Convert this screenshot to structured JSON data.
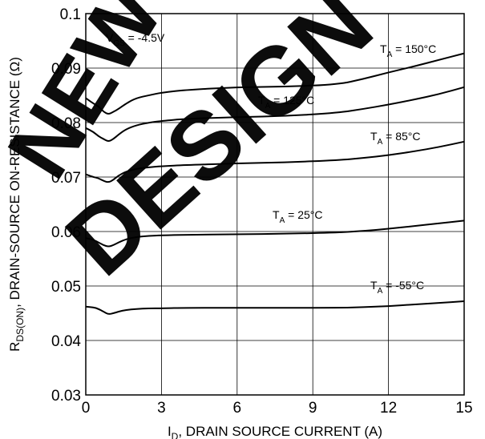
{
  "chart_data": {
    "type": "line",
    "xlabel_main": "I",
    "xlabel_sub": "D",
    "xlabel_rest": ", DRAIN SOURCE CURRENT (A)",
    "ylabel_main": "R",
    "ylabel_sub": "DS(ON)",
    "ylabel_rest": ", DRAIN-SOURCE ON-RESISTANCE (Ω)",
    "condition_main": "V",
    "condition_sub": "GS",
    "condition_rest": " = -4.5V",
    "xlim": [
      0,
      15
    ],
    "ylim": [
      0.03,
      0.1
    ],
    "x_ticks": [
      "0",
      "3",
      "6",
      "9",
      "12",
      "15"
    ],
    "y_ticks": [
      "0.1",
      "0.09",
      "0.08",
      "0.07",
      "0.06",
      "0.05",
      "0.04",
      "0.03"
    ],
    "grid": true,
    "series": [
      {
        "name_main": "T",
        "name_sub": "A",
        "name_rest": " = 150°C",
        "x": [
          0,
          0.3,
          0.5,
          0.7,
          0.9,
          1.1,
          1.3,
          1.6,
          2,
          2.5,
          3,
          4,
          6,
          8,
          10,
          11,
          12,
          13,
          14,
          15
        ],
        "y": [
          0.0845,
          0.0835,
          0.083,
          0.082,
          0.0815,
          0.082,
          0.0825,
          0.0835,
          0.0845,
          0.085,
          0.0855,
          0.086,
          0.0865,
          0.0866,
          0.087,
          0.088,
          0.0892,
          0.0903,
          0.0915,
          0.0927
        ]
      },
      {
        "name_main": "T",
        "name_sub": "A",
        "name_rest": " = 125°C",
        "x": [
          0,
          0.3,
          0.5,
          0.7,
          0.9,
          1.1,
          1.3,
          1.6,
          2,
          2.5,
          3,
          4,
          6,
          8,
          10,
          11,
          12,
          13,
          14,
          15
        ],
        "y": [
          0.079,
          0.0783,
          0.0775,
          0.077,
          0.0765,
          0.077,
          0.0778,
          0.0788,
          0.0795,
          0.08,
          0.0803,
          0.0807,
          0.081,
          0.0812,
          0.0818,
          0.0825,
          0.0833,
          0.0842,
          0.0852,
          0.0865
        ]
      },
      {
        "name_main": "T",
        "name_sub": "A",
        "name_rest": " = 85°C",
        "x": [
          0,
          0.3,
          0.5,
          0.7,
          0.9,
          1.1,
          1.3,
          1.6,
          2,
          2.5,
          3,
          4,
          6,
          8,
          10,
          11,
          12,
          13,
          14,
          15
        ],
        "y": [
          0.0705,
          0.07,
          0.0698,
          0.0693,
          0.069,
          0.0695,
          0.0703,
          0.071,
          0.0715,
          0.0718,
          0.072,
          0.0722,
          0.0725,
          0.0727,
          0.0731,
          0.0735,
          0.074,
          0.0747,
          0.0755,
          0.0765
        ]
      },
      {
        "name_main": "T",
        "name_sub": "A",
        "name_rest": " = 25°C",
        "x": [
          0,
          0.3,
          0.5,
          0.7,
          0.9,
          1.1,
          1.3,
          1.6,
          2,
          2.5,
          3,
          4,
          6,
          8,
          10,
          11,
          12,
          13,
          14,
          15
        ],
        "y": [
          0.0588,
          0.0585,
          0.058,
          0.0575,
          0.0572,
          0.0575,
          0.058,
          0.0586,
          0.059,
          0.0592,
          0.0593,
          0.0594,
          0.0595,
          0.0596,
          0.0598,
          0.0601,
          0.0605,
          0.061,
          0.0615,
          0.062
        ]
      },
      {
        "name_main": "T",
        "name_sub": "A",
        "name_rest": " = -55°C",
        "x": [
          0,
          0.3,
          0.5,
          0.7,
          0.9,
          1.1,
          1.3,
          1.6,
          2,
          2.5,
          3,
          4,
          6,
          8,
          10,
          11,
          12,
          13,
          14,
          15
        ],
        "y": [
          0.0462,
          0.0461,
          0.0458,
          0.0453,
          0.0448,
          0.045,
          0.0453,
          0.0456,
          0.0458,
          0.0459,
          0.0459,
          0.046,
          0.046,
          0.046,
          0.046,
          0.0461,
          0.0463,
          0.0466,
          0.0469,
          0.0472
        ]
      }
    ],
    "watermark": [
      "NEW",
      "DESIGN"
    ]
  }
}
